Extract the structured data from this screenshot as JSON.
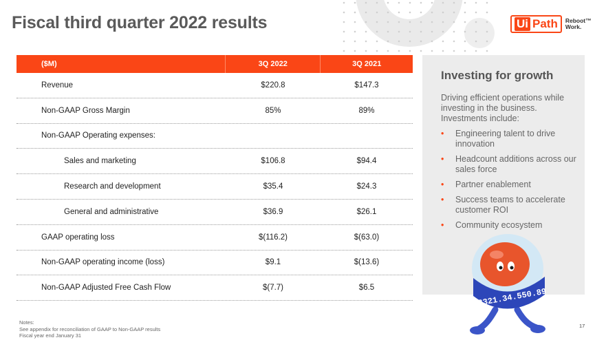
{
  "slide": {
    "title": "Fiscal third quarter 2022 results",
    "page_number": "17"
  },
  "logo": {
    "ui": "Ui",
    "path": "Path",
    "tagline_1": "Reboot™",
    "tagline_2": "Work."
  },
  "table": {
    "headers": [
      "($M)",
      "3Q 2022",
      "3Q 2021"
    ],
    "rows": [
      {
        "label": "Revenue",
        "q2022": "$220.8",
        "q2021": "$147.3"
      },
      {
        "label": "Non-GAAP Gross Margin",
        "q2022": "85%",
        "q2021": "89%"
      },
      {
        "label": "Non-GAAP Operating expenses:",
        "q2022": "",
        "q2021": ""
      },
      {
        "label": "Sales and marketing",
        "q2022": "$106.8",
        "q2021": "$94.4"
      },
      {
        "label": "Research and development",
        "q2022": "$35.4",
        "q2021": "$24.3"
      },
      {
        "label": "General and administrative",
        "q2022": "$36.9",
        "q2021": "$26.1"
      },
      {
        "label": "GAAP operating loss",
        "q2022": "$(116.2)",
        "q2021": "$(63.0)"
      },
      {
        "label": "Non-GAAP operating income (loss)",
        "q2022": "$9.1",
        "q2021": "$(13.6)"
      },
      {
        "label": "Non-GAAP Adjusted Free Cash Flow",
        "q2022": "$(7.7)",
        "q2021": "$6.5"
      }
    ]
  },
  "panel": {
    "title": "Investing for growth",
    "intro": "Driving efficient operations while investing in the business. Investments include:",
    "bullets": [
      "Engineering talent to drive innovation",
      "Headcount additions across our sales force",
      "Partner enablement",
      "Success teams to accelerate customer ROI",
      "Community ecosystem"
    ]
  },
  "mascot": {
    "band_text": "8321.34.550.89"
  },
  "notes": {
    "line1": "Notes:",
    "line2": "See appendix for reconciliation of GAAP to Non-GAAP results",
    "line3": "Fiscal year end January 31"
  },
  "colors": {
    "accent": "#fa4616",
    "panel_bg": "#ececec",
    "title_text": "#5a5a5a"
  }
}
